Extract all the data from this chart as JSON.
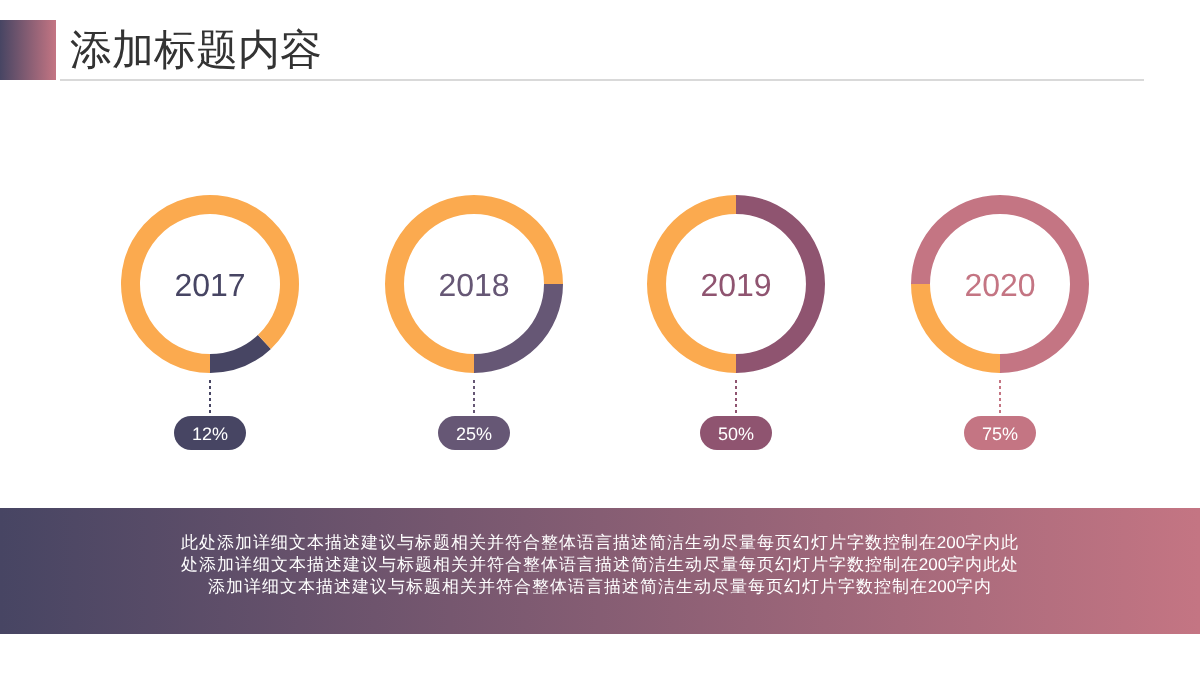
{
  "chart_data": [
    {
      "type": "other",
      "title": "添加标题内容",
      "annotations": [
        "此处添加详细文本描述建议与标题相关并符合整体语言描述简洁生动尽量每页幻灯片字数控制在200字内此处添加详细文本描述建议与标题相关并符合整体语言描述简洁生动尽量每页幻灯片字数控制在200字内此处添加详细文本描述建议与标题相关并符合整体语言描述简洁生动尽量每页幻灯片字数控制在200字内"
      ]
    },
    {
      "type": "donut",
      "title": "2017",
      "categories": [
        null,
        null
      ],
      "values": [
        12,
        88
      ],
      "colors": [
        "#474563",
        "#fbaa4f"
      ],
      "value_labels": [
        "12%",
        null
      ]
    },
    {
      "type": "donut",
      "title": "2018",
      "categories": [
        null,
        null
      ],
      "values": [
        25,
        75
      ],
      "colors": [
        "#665775",
        "#fbaa4f"
      ],
      "value_labels": [
        "25%",
        null
      ]
    },
    {
      "type": "donut",
      "title": "2019",
      "categories": [
        null,
        null
      ],
      "values": [
        50,
        50
      ],
      "colors": [
        "#8f5470",
        "#fbaa4f"
      ],
      "value_labels": [
        "50%",
        null
      ]
    },
    {
      "type": "donut",
      "title": "2020",
      "categories": [
        null,
        null
      ],
      "values": [
        75,
        25
      ],
      "colors": [
        "#c47583",
        "#fbaa4f"
      ],
      "value_labels": [
        "75%",
        null
      ]
    }
  ]
}
